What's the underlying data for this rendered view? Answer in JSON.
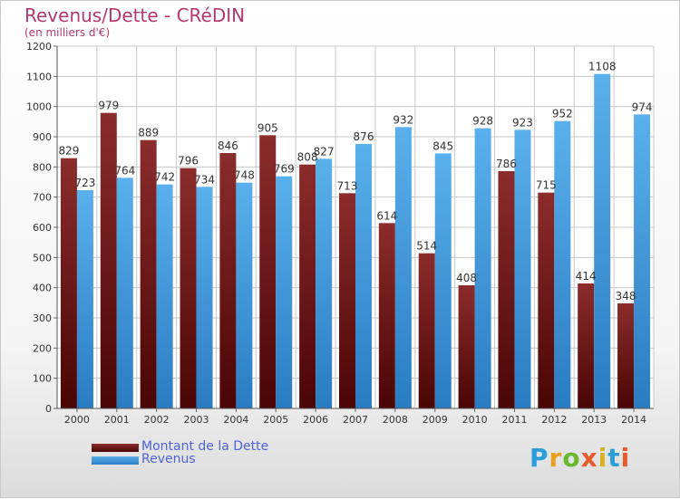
{
  "header": {
    "title": "Revenus/Dette - CRéDIN",
    "subtitle": "(en milliers d'€)"
  },
  "logo": {
    "text": "Proxiti"
  },
  "colors": {
    "debt": "#6e1a1a",
    "revenue": "#4da3e6",
    "grid": "#c8c8c8",
    "axis_text": "#333333"
  },
  "chart_data": {
    "type": "bar",
    "title": "Revenus/Dette - CRéDIN",
    "subtitle": "(en milliers d'€)",
    "categories": [
      "2000",
      "2001",
      "2002",
      "2003",
      "2004",
      "2005",
      "2006",
      "2007",
      "2008",
      "2009",
      "2010",
      "2011",
      "2012",
      "2013",
      "2014"
    ],
    "series": [
      {
        "name": "Montant de la Dette",
        "values": [
          829,
          979,
          889,
          796,
          846,
          905,
          808,
          713,
          614,
          514,
          408,
          786,
          715,
          414,
          348
        ]
      },
      {
        "name": "Revenus",
        "values": [
          723,
          764,
          742,
          734,
          748,
          769,
          827,
          876,
          932,
          845,
          928,
          923,
          952,
          1108,
          974
        ]
      }
    ],
    "y_ticks": [
      0,
      100,
      200,
      300,
      400,
      500,
      600,
      700,
      800,
      900,
      1000,
      1100,
      1200
    ],
    "ylim": [
      0,
      1200
    ],
    "grid": true,
    "legend_position": "bottom-left",
    "data_labels": true
  }
}
